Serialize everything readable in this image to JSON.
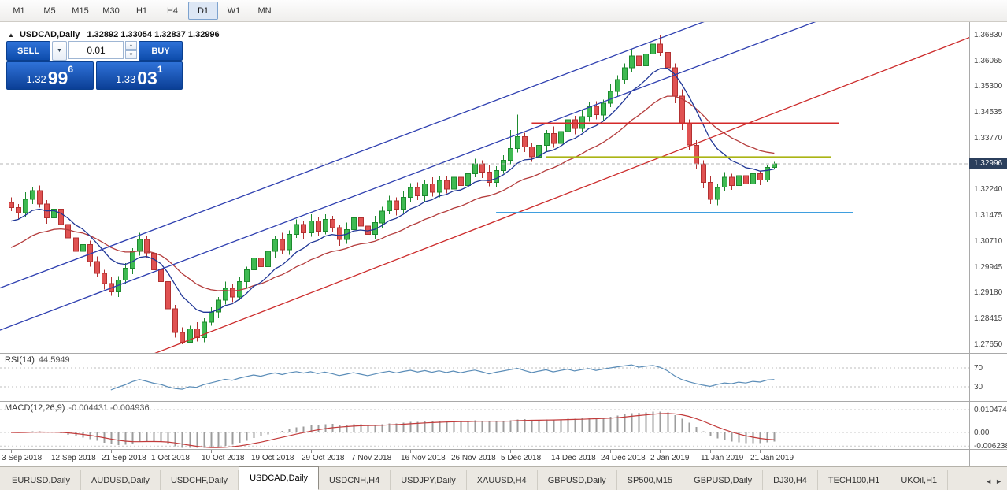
{
  "toolbar": {
    "timeframes": [
      {
        "label": "M1",
        "active": false
      },
      {
        "label": "M5",
        "active": false
      },
      {
        "label": "M15",
        "active": false
      },
      {
        "label": "M30",
        "active": false
      },
      {
        "label": "H1",
        "active": false
      },
      {
        "label": "H4",
        "active": false
      },
      {
        "label": "D1",
        "active": true
      },
      {
        "label": "W1",
        "active": false
      },
      {
        "label": "MN",
        "active": false
      }
    ]
  },
  "chart": {
    "symbol_title": "USDCAD,Daily",
    "ohlc_line": "1.32892 1.33054 1.32837 1.32996",
    "current_price": "1.32996",
    "current_price_badge_bg": "#2b3f5c",
    "price_axis_labels": [
      "1.36830",
      "1.36065",
      "1.35300",
      "1.34535",
      "1.33770",
      "1.32240",
      "1.31475",
      "1.30710",
      "1.29945",
      "1.29180",
      "1.28415",
      "1.27650"
    ],
    "widget": {
      "sell_label": "SELL",
      "buy_label": "BUY",
      "lot": "0.01",
      "bid_big": "1.32",
      "bid_pips": "99",
      "bid_sup": "6",
      "ask_big": "1.33",
      "ask_pips": "03",
      "ask_sup": "1"
    },
    "icons": {
      "collapse": "▲",
      "lot_dropdown": "▼",
      "spin_up": "▲",
      "spin_down": "▼",
      "tab_prev": "◄",
      "tab_next": "►"
    }
  },
  "chart_data": {
    "type": "candlestick",
    "symbol": "USDCAD",
    "timeframe": "Daily",
    "ylim": [
      1.2739,
      1.372
    ],
    "candle_colors": {
      "up": "#3fba52",
      "up_border": "#1d8a2e",
      "down": "#e05252",
      "down_border": "#b23131"
    },
    "x_labels": [
      {
        "i": 0,
        "label": "3 Sep 2018"
      },
      {
        "i": 7,
        "label": "12 Sep 2018"
      },
      {
        "i": 14,
        "label": "21 Sep 2018"
      },
      {
        "i": 21,
        "label": "1 Oct 2018"
      },
      {
        "i": 28,
        "label": "10 Oct 2018"
      },
      {
        "i": 35,
        "label": "19 Oct 2018"
      },
      {
        "i": 42,
        "label": "29 Oct 2018"
      },
      {
        "i": 49,
        "label": "7 Nov 2018"
      },
      {
        "i": 56,
        "label": "16 Nov 2018"
      },
      {
        "i": 63,
        "label": "26 Nov 2018"
      },
      {
        "i": 70,
        "label": "5 Dec 2018"
      },
      {
        "i": 77,
        "label": "14 Dec 2018"
      },
      {
        "i": 84,
        "label": "24 Dec 2018"
      },
      {
        "i": 91,
        "label": "2 Jan 2019"
      },
      {
        "i": 98,
        "label": "11 Jan 2019"
      },
      {
        "i": 105,
        "label": "21 Jan 2019"
      }
    ],
    "candles": [
      [
        1.3185,
        1.32,
        1.316,
        1.317
      ],
      [
        1.317,
        1.318,
        1.3137,
        1.3155
      ],
      [
        1.3155,
        1.3215,
        1.3143,
        1.3195
      ],
      [
        1.3195,
        1.3232,
        1.318,
        1.322
      ],
      [
        1.322,
        1.3235,
        1.317,
        1.318
      ],
      [
        1.318,
        1.3192,
        1.3122,
        1.314
      ],
      [
        1.314,
        1.3185,
        1.3128,
        1.3165
      ],
      [
        1.3165,
        1.3177,
        1.3105,
        1.312
      ],
      [
        1.312,
        1.3135,
        1.307,
        1.308
      ],
      [
        1.308,
        1.309,
        1.3022,
        1.304
      ],
      [
        1.304,
        1.308,
        1.3028,
        1.306
      ],
      [
        1.306,
        1.3072,
        1.2995,
        1.301
      ],
      [
        1.301,
        1.3025,
        1.2965,
        1.2975
      ],
      [
        1.2975,
        1.2985,
        1.2927,
        1.2945
      ],
      [
        1.2945,
        1.2965,
        1.2908,
        1.292
      ],
      [
        1.292,
        1.2967,
        1.2905,
        1.2955
      ],
      [
        1.2955,
        1.3005,
        1.2945,
        1.299
      ],
      [
        1.299,
        1.305,
        1.2972,
        1.304
      ],
      [
        1.304,
        1.3095,
        1.3028,
        1.3075
      ],
      [
        1.3075,
        1.3087,
        1.302,
        1.3035
      ],
      [
        1.3035,
        1.305,
        1.2975,
        1.2985
      ],
      [
        1.2985,
        1.2995,
        1.2932,
        1.295
      ],
      [
        1.295,
        1.297,
        1.2858,
        1.287
      ],
      [
        1.287,
        1.2882,
        1.2785,
        1.28
      ],
      [
        1.28,
        1.2815,
        1.2765,
        1.277
      ],
      [
        1.277,
        1.282,
        1.2768,
        1.281
      ],
      [
        1.281,
        1.283,
        1.2773,
        1.2785
      ],
      [
        1.2785,
        1.2842,
        1.277,
        1.283
      ],
      [
        1.283,
        1.2875,
        1.282,
        1.286
      ],
      [
        1.286,
        1.2905,
        1.2842,
        1.2895
      ],
      [
        1.2895,
        1.295,
        1.2883,
        1.293
      ],
      [
        1.293,
        1.2945,
        1.289,
        1.2905
      ],
      [
        1.2905,
        1.2965,
        1.2895,
        1.295
      ],
      [
        1.295,
        1.2995,
        1.2932,
        1.2985
      ],
      [
        1.2985,
        1.304,
        1.2973,
        1.302
      ],
      [
        1.302,
        1.3032,
        1.298,
        1.2995
      ],
      [
        1.2995,
        1.3055,
        1.2985,
        1.304
      ],
      [
        1.304,
        1.3085,
        1.3022,
        1.3075
      ],
      [
        1.3075,
        1.3095,
        1.3033,
        1.3045
      ],
      [
        1.3045,
        1.3102,
        1.303,
        1.309
      ],
      [
        1.309,
        1.3135,
        1.308,
        1.312
      ],
      [
        1.312,
        1.313,
        1.3077,
        1.3095
      ],
      [
        1.3095,
        1.315,
        1.3083,
        1.313
      ],
      [
        1.313,
        1.3142,
        1.3085,
        1.31
      ],
      [
        1.31,
        1.315,
        1.309,
        1.3135
      ],
      [
        1.3135,
        1.3145,
        1.3098,
        1.311
      ],
      [
        1.311,
        1.312,
        1.3057,
        1.3075
      ],
      [
        1.3075,
        1.3125,
        1.3063,
        1.3105
      ],
      [
        1.3105,
        1.3152,
        1.309,
        1.314
      ],
      [
        1.314,
        1.3155,
        1.3103,
        1.3115
      ],
      [
        1.3115,
        1.3125,
        1.3072,
        1.309
      ],
      [
        1.309,
        1.3145,
        1.3078,
        1.3125
      ],
      [
        1.3125,
        1.3172,
        1.311,
        1.316
      ],
      [
        1.316,
        1.3205,
        1.315,
        1.319
      ],
      [
        1.319,
        1.32,
        1.3147,
        1.3165
      ],
      [
        1.3165,
        1.322,
        1.3153,
        1.32
      ],
      [
        1.32,
        1.3242,
        1.3185,
        1.323
      ],
      [
        1.323,
        1.3245,
        1.3192,
        1.3205
      ],
      [
        1.3205,
        1.325,
        1.3187,
        1.324
      ],
      [
        1.324,
        1.326,
        1.3203,
        1.3215
      ],
      [
        1.3215,
        1.3262,
        1.32,
        1.325
      ],
      [
        1.325,
        1.3265,
        1.3212,
        1.3225
      ],
      [
        1.3225,
        1.327,
        1.3207,
        1.326
      ],
      [
        1.326,
        1.328,
        1.3223,
        1.3235
      ],
      [
        1.3235,
        1.3282,
        1.322,
        1.327
      ],
      [
        1.327,
        1.3315,
        1.326,
        1.33
      ],
      [
        1.33,
        1.331,
        1.3257,
        1.3275
      ],
      [
        1.3275,
        1.3295,
        1.3233,
        1.3245
      ],
      [
        1.3245,
        1.3292,
        1.323,
        1.328
      ],
      [
        1.328,
        1.3325,
        1.327,
        1.331
      ],
      [
        1.331,
        1.34,
        1.3298,
        1.3345
      ],
      [
        1.3345,
        1.3445,
        1.3333,
        1.338
      ],
      [
        1.338,
        1.3392,
        1.3335,
        1.335
      ],
      [
        1.335,
        1.3362,
        1.3305,
        1.332
      ],
      [
        1.332,
        1.337,
        1.3302,
        1.3355
      ],
      [
        1.3355,
        1.34,
        1.3337,
        1.339
      ],
      [
        1.339,
        1.341,
        1.3348,
        1.336
      ],
      [
        1.336,
        1.3407,
        1.3345,
        1.3395
      ],
      [
        1.3395,
        1.3445,
        1.3385,
        1.343
      ],
      [
        1.343,
        1.3442,
        1.3387,
        1.3405
      ],
      [
        1.3405,
        1.346,
        1.3393,
        1.344
      ],
      [
        1.344,
        1.3482,
        1.3425,
        1.347
      ],
      [
        1.347,
        1.3485,
        1.3432,
        1.3445
      ],
      [
        1.3445,
        1.349,
        1.3427,
        1.348
      ],
      [
        1.348,
        1.3535,
        1.3468,
        1.3515
      ],
      [
        1.3515,
        1.3562,
        1.35,
        1.355
      ],
      [
        1.355,
        1.3597,
        1.3535,
        1.3585
      ],
      [
        1.3585,
        1.364,
        1.3573,
        1.362
      ],
      [
        1.362,
        1.3632,
        1.3572,
        1.359
      ],
      [
        1.359,
        1.3645,
        1.3578,
        1.3625
      ],
      [
        1.3625,
        1.3667,
        1.361,
        1.3655
      ],
      [
        1.3655,
        1.3683,
        1.362,
        1.363
      ],
      [
        1.363,
        1.365,
        1.3565,
        1.3585
      ],
      [
        1.3585,
        1.3597,
        1.348,
        1.35
      ],
      [
        1.35,
        1.352,
        1.34,
        1.342
      ],
      [
        1.342,
        1.3432,
        1.334,
        1.3355
      ],
      [
        1.3355,
        1.337,
        1.3285,
        1.33
      ],
      [
        1.33,
        1.331,
        1.3227,
        1.3245
      ],
      [
        1.3245,
        1.3265,
        1.318,
        1.3195
      ],
      [
        1.3195,
        1.324,
        1.3177,
        1.323
      ],
      [
        1.323,
        1.3275,
        1.3218,
        1.326
      ],
      [
        1.326,
        1.327,
        1.3222,
        1.3235
      ],
      [
        1.3235,
        1.3277,
        1.3225,
        1.3265
      ],
      [
        1.3265,
        1.3285,
        1.3228,
        1.324
      ],
      [
        1.324,
        1.3282,
        1.322,
        1.327
      ],
      [
        1.327,
        1.3279,
        1.3237,
        1.3252
      ],
      [
        1.3252,
        1.3297,
        1.3246,
        1.3289
      ],
      [
        1.32892,
        1.33054,
        1.32837,
        1.32996
      ]
    ],
    "overlays": {
      "ma_fast": {
        "type": "EMA",
        "period": 9,
        "color": "#1f3696"
      },
      "ma_slow": {
        "type": "EMA",
        "period": 21,
        "color": "#b43c3c"
      },
      "trendlines": [
        {
          "name": "trendline-blue-upper",
          "color": "#2e3fb0",
          "i1": -3,
          "p1": 1.292,
          "i2": 133,
          "p2": 1.4008
        },
        {
          "name": "trendline-blue-lower",
          "color": "#2e3fb0",
          "i1": -3,
          "p1": 1.2795,
          "i2": 133,
          "p2": 1.3883
        },
        {
          "name": "trendline-red",
          "color": "#cc2b2b",
          "i1": 18,
          "p1": 1.272,
          "i2": 142,
          "p2": 1.3737
        }
      ],
      "hlines": [
        {
          "name": "hline-resistance-red",
          "color": "#d42a2a",
          "price": 1.342,
          "i1": 73,
          "i2": 116
        },
        {
          "name": "hline-olive",
          "color": "#aab414",
          "price": 1.332,
          "i1": 75,
          "i2": 115
        },
        {
          "name": "hline-support-blue",
          "color": "#3f9fdf",
          "price": 1.3155,
          "i1": 68,
          "i2": 118
        }
      ]
    },
    "indicators": {
      "rsi": {
        "label": "RSI(14)",
        "value": "44.5949",
        "period": 14,
        "levels": [
          70,
          30
        ],
        "color": "#5b8db8"
      },
      "macd": {
        "label": "MACD(12,26,9)",
        "values": "-0.004431 -0.004936",
        "fast": 12,
        "slow": 26,
        "signal": 9,
        "axis_labels": [
          "0.010474",
          "0.00",
          "-0.006238"
        ],
        "bar_color": "#9c9c9c",
        "signal_color": "#c23b3b"
      }
    }
  },
  "tabs": {
    "items": [
      {
        "label": "EURUSD,Daily",
        "active": false
      },
      {
        "label": "AUDUSD,Daily",
        "active": false
      },
      {
        "label": "USDCHF,Daily",
        "active": false
      },
      {
        "label": "USDCAD,Daily",
        "active": true
      },
      {
        "label": "USDCNH,H4",
        "active": false
      },
      {
        "label": "USDJPY,Daily",
        "active": false
      },
      {
        "label": "XAUUSD,H4",
        "active": false
      },
      {
        "label": "GBPUSD,Daily",
        "active": false
      },
      {
        "label": "SP500,M15",
        "active": false
      },
      {
        "label": "GBPUSD,Daily",
        "active": false
      },
      {
        "label": "DJ30,H4",
        "active": false
      },
      {
        "label": "TECH100,H1",
        "active": false
      },
      {
        "label": "UKOil,H1",
        "active": false
      }
    ]
  }
}
